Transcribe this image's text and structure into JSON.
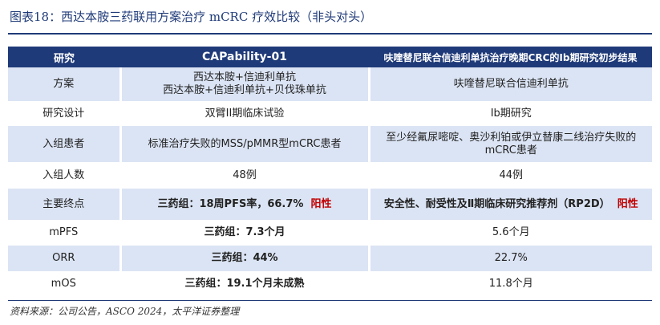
{
  "caption": "图表18：西达本胺三药联用方案治疗 mCRC 疗效比较（非头对头）",
  "headers": [
    "研究",
    "CAPability-01",
    "呋喹替尼联合信迪利单抗治疗晚期CRC的Ib期研究初步结果"
  ],
  "rows": {
    "plan": {
      "label": "方案",
      "cap_line1": "西达本胺+信迪利单抗",
      "cap_line2": "西达本胺+信迪利单抗+贝伐珠单抗",
      "fru": "呋喹替尼联合信迪利单抗"
    },
    "design": {
      "label": "研究设计",
      "cap": "双臂II期临床试验",
      "fru": "Ib期研究"
    },
    "patients": {
      "label": "入组患者",
      "cap": "标准治疗失败的MSS/pMMR型mCRC患者",
      "fru_line1": "至少经氟尿嘧啶、奥沙利铂或伊立替康二线治疗失败的",
      "fru_line2": "mCRC患者"
    },
    "count": {
      "label": "入组人数",
      "cap": "48例",
      "fru": "44例"
    },
    "endpoint": {
      "label": "主要终点",
      "cap": "三药组：18周PFS率，66.7%",
      "cap_flag": "阳性",
      "fru": "安全性、耐受性及Ⅱ期临床研究推荐剂（RP2D）",
      "fru_flag": "阳性"
    },
    "mpfs": {
      "label": "mPFS",
      "cap": "三药组：7.3个月",
      "fru": "5.6个月"
    },
    "orr": {
      "label": "ORR",
      "cap": "三药组：44%",
      "fru": "22.7%"
    },
    "mos": {
      "label": "mOS",
      "cap": "三药组：19.1个月未成熟",
      "fru": "11.8个月"
    }
  },
  "source": "资料来源：公司公告，ASCO 2024，太平洋证券整理",
  "colors": {
    "header_bg": "#1f3a78",
    "stripe_bg": "#dbe4f4",
    "positive": "#c00000"
  }
}
